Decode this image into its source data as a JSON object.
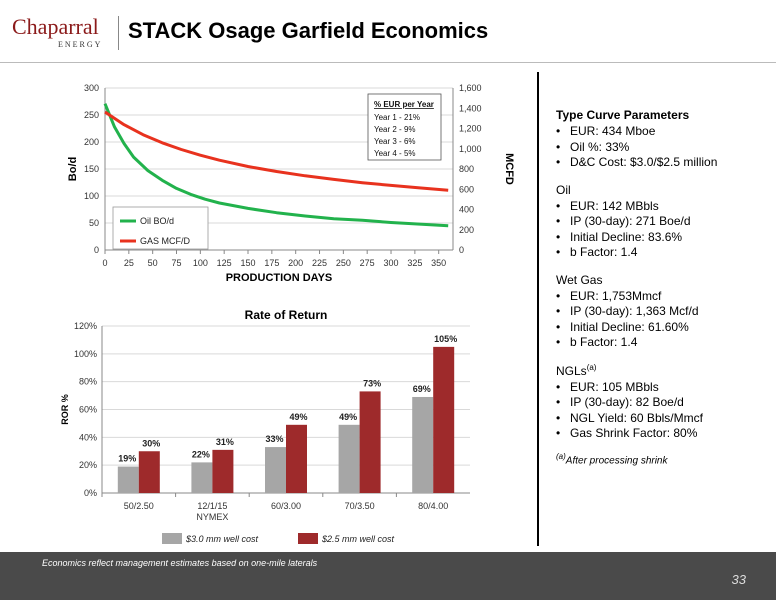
{
  "header": {
    "logo_main": "Chaparral",
    "logo_sub": "ENERGY",
    "title": "STACK Osage Garfield  Economics"
  },
  "chart_data": [
    {
      "type": "line",
      "title": "",
      "xlabel": "PRODUCTION DAYS",
      "ylabel": "Bo/d",
      "y2label": "MCFD",
      "xlim": [
        0,
        365
      ],
      "ylim": [
        0,
        300
      ],
      "y2lim": [
        0,
        1600
      ],
      "x_ticks": [
        0,
        25,
        50,
        75,
        100,
        125,
        150,
        175,
        200,
        225,
        250,
        275,
        300,
        325,
        350
      ],
      "y_ticks": [
        0,
        50,
        100,
        150,
        200,
        250,
        300
      ],
      "y2_ticks": [
        0,
        200,
        400,
        600,
        800,
        1000,
        1200,
        1400,
        1600
      ],
      "y2_tick_labels": [
        "0",
        "200",
        "400",
        "600",
        "800",
        "1,000",
        "1,200",
        "1,400",
        "1,600"
      ],
      "grid": true,
      "legend": "bottom-left",
      "series": [
        {
          "name": "Oil BO/d",
          "axis": "left",
          "color": "#22b24c",
          "x": [
            0,
            10,
            20,
            30,
            45,
            60,
            75,
            90,
            105,
            120,
            150,
            180,
            210,
            240,
            270,
            300,
            330,
            360
          ],
          "y": [
            271,
            228,
            197,
            172,
            147,
            129,
            114,
            103,
            94,
            87,
            77,
            69,
            63,
            58,
            55,
            51,
            48,
            45
          ]
        },
        {
          "name": "GAS MCF/D",
          "axis": "right",
          "color": "#e8321e",
          "x": [
            0,
            20,
            40,
            60,
            80,
            100,
            120,
            150,
            180,
            210,
            240,
            270,
            300,
            330,
            360
          ],
          "y": [
            1363,
            1238,
            1139,
            1059,
            993,
            936,
            887,
            825,
            775,
            733,
            697,
            665,
            638,
            613,
            590
          ]
        }
      ],
      "annotation": {
        "heading": "% EUR per Year",
        "lines": [
          "Year 1 - 21%",
          "Year 2 - 9%",
          "Year 3 - 6%",
          "Year 4 - 5%"
        ]
      }
    },
    {
      "type": "bar",
      "title": "Rate of Return",
      "xlabel": "",
      "ylabel": "ROR %",
      "categories": [
        "50/2.50",
        "12/1/15",
        "60/3.00",
        "70/3.50",
        "80/4.00"
      ],
      "category_sublabels": [
        "",
        "NYMEX",
        "",
        "",
        ""
      ],
      "ylim": [
        0,
        120
      ],
      "y_ticks": [
        0,
        20,
        40,
        60,
        80,
        100,
        120
      ],
      "y_tick_labels": [
        "0%",
        "20%",
        "40%",
        "60%",
        "80%",
        "100%",
        "120%"
      ],
      "grid": true,
      "legend": "bottom",
      "series": [
        {
          "name": "$3.0 mm well cost",
          "color": "#a6a6a6",
          "values": [
            19,
            22,
            33,
            49,
            69
          ],
          "labels": [
            "19%",
            "22%",
            "33%",
            "49%",
            "69%"
          ]
        },
        {
          "name": "$2.5 mm well cost",
          "color": "#9e2a2b",
          "values": [
            30,
            31,
            49,
            73,
            105
          ],
          "labels": [
            "30%",
            "31%",
            "49%",
            "73%",
            "105%"
          ]
        }
      ]
    }
  ],
  "params": {
    "type_curve": {
      "heading": "Type Curve Parameters",
      "items": [
        "EUR: 434 Mboe",
        "Oil %: 33%",
        "D&C Cost: $3.0/$2.5 million"
      ]
    },
    "oil": {
      "heading": "Oil",
      "items": [
        "EUR: 142 MBbls",
        "IP (30-day): 271 Boe/d",
        "Initial Decline: 83.6%",
        "b Factor: 1.4"
      ]
    },
    "wet_gas": {
      "heading": "Wet Gas",
      "items": [
        "EUR: 1,753Mmcf",
        "IP (30-day): 1,363 Mcf/d",
        "Initial Decline: 61.60%",
        "b Factor: 1.4"
      ]
    },
    "ngls": {
      "heading": "NGLs",
      "heading_sup": "(a)",
      "items": [
        "EUR: 105 MBbls",
        "IP (30-day): 82 Boe/d",
        "NGL Yield: 60 Bbls/Mmcf",
        "Gas Shrink Factor: 80%"
      ]
    },
    "note_marker": "(a)",
    "note": "After processing shrink"
  },
  "footer": {
    "note": "Economics reflect management estimates based on one-mile laterals",
    "page": "33"
  }
}
